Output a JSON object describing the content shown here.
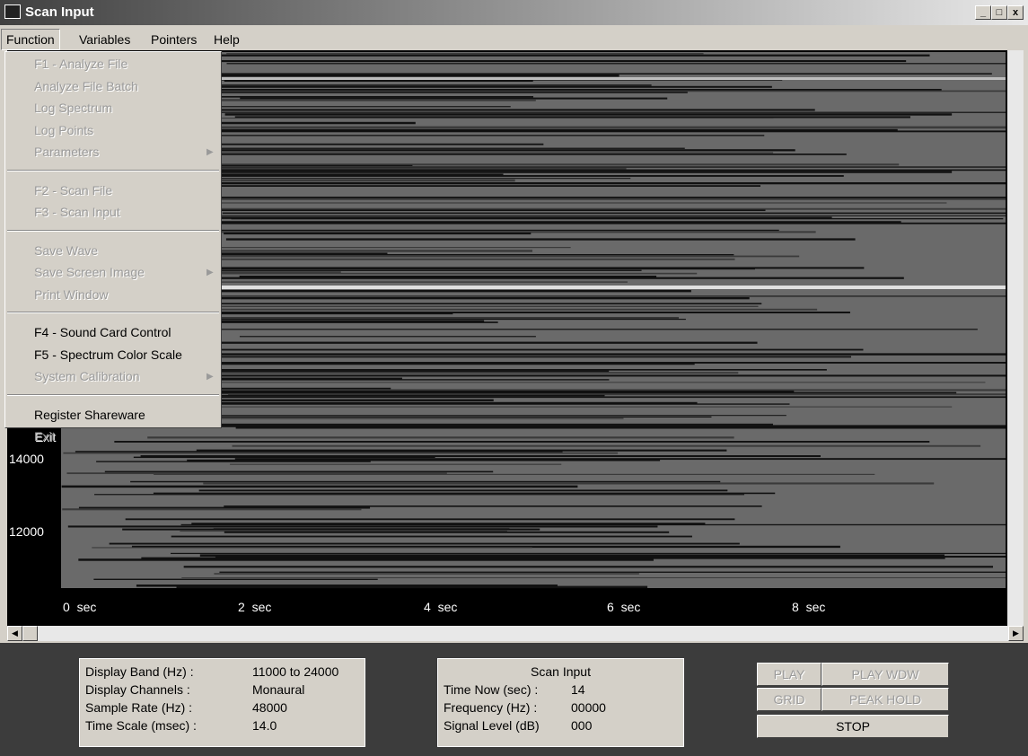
{
  "window": {
    "title": "Scan Input"
  },
  "menubar": [
    "Function",
    "Variables",
    "Pointers",
    "Help"
  ],
  "menu": {
    "groups": [
      [
        {
          "label": "F1 - Analyze File",
          "enabled": false
        },
        {
          "label": "Analyze File Batch",
          "enabled": false
        },
        {
          "label": "Log Spectrum",
          "enabled": false
        },
        {
          "label": "Log Points",
          "enabled": false
        },
        {
          "label": "Parameters",
          "enabled": false,
          "submenu": true
        }
      ],
      [
        {
          "label": "F2 - Scan File",
          "enabled": false
        },
        {
          "label": "F3 - Scan Input",
          "enabled": false
        }
      ],
      [
        {
          "label": "Save Wave",
          "enabled": false
        },
        {
          "label": "Save Screen Image",
          "enabled": false,
          "submenu": true
        },
        {
          "label": "Print Window",
          "enabled": false
        }
      ],
      [
        {
          "label": "F4 - Sound Card Control",
          "enabled": true
        },
        {
          "label": "F5 - Spectrum Color Scale",
          "enabled": true
        },
        {
          "label": "System Calibration",
          "enabled": false,
          "submenu": true
        }
      ],
      [
        {
          "label": "Register Shareware",
          "enabled": true
        },
        {
          "label": "Exit",
          "enabled": false
        }
      ]
    ]
  },
  "spectrogram": {
    "y_labels": [
      "14000",
      "12000"
    ],
    "x_labels": [
      "0  sec",
      "2  sec",
      "4  sec",
      "6  sec",
      "8  sec"
    ]
  },
  "info_panel": {
    "rows": [
      [
        "Display Band (Hz) :",
        "11000 to 24000"
      ],
      [
        "Display Channels :",
        "Monaural"
      ],
      [
        "Sample Rate (Hz) :",
        "48000"
      ],
      [
        "Time Scale (msec) :",
        "14.0"
      ]
    ]
  },
  "scan_panel": {
    "title": "Scan Input",
    "rows": [
      [
        "Time Now (sec) :",
        "14"
      ],
      [
        "Frequency (Hz) :",
        "00000"
      ],
      [
        "Signal Level (dB)",
        "000"
      ]
    ]
  },
  "buttons": [
    {
      "label": "PLAY",
      "enabled": false
    },
    {
      "label": "PLAY WDW",
      "enabled": false
    },
    {
      "label": "GRID",
      "enabled": false
    },
    {
      "label": "PEAK HOLD",
      "enabled": false
    },
    {
      "label": "STOP",
      "enabled": true
    }
  ]
}
